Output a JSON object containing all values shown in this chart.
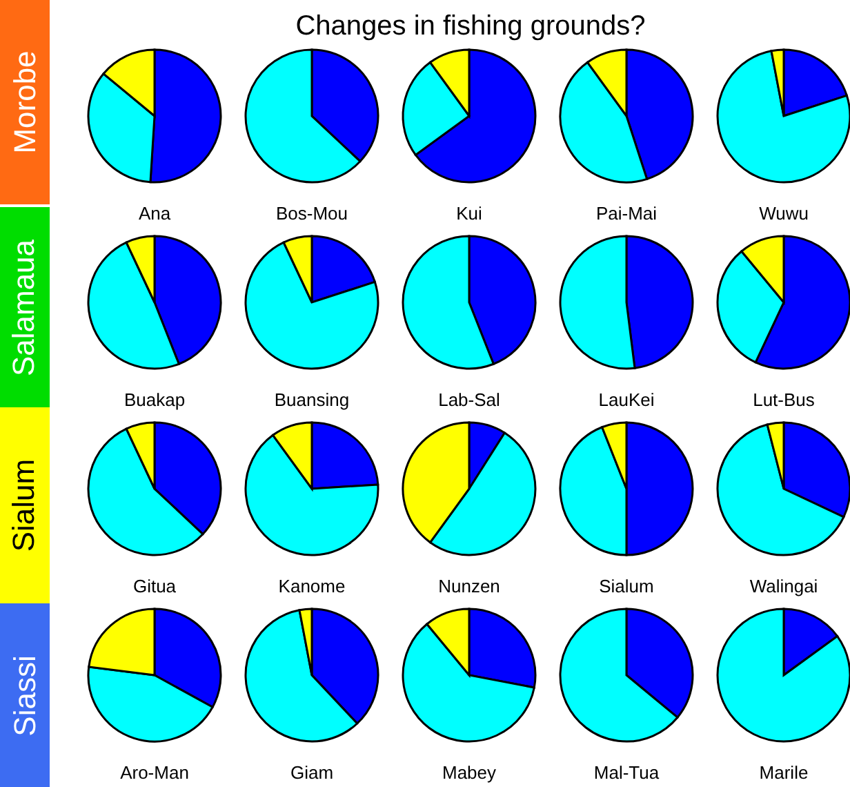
{
  "chart_data": [
    {
      "type": "other",
      "title": "Changes in fishing grounds?",
      "annotations": [
        "Morobe",
        "Salamaua",
        "Sialum",
        "Siassi"
      ],
      "colors": [
        "#ff6a13",
        "#00dd00",
        "#ffff00",
        "#3d6cf2"
      ]
    },
    {
      "type": "pie",
      "title": "Ana",
      "categories": [
        null,
        null,
        null
      ],
      "values": [
        51,
        35,
        14
      ],
      "colors": [
        "#0000ff",
        "#00ffff",
        "#ffff00"
      ]
    },
    {
      "type": "pie",
      "title": "Bos-Mou",
      "categories": [
        null,
        null
      ],
      "values": [
        37,
        63
      ],
      "colors": [
        "#0000ff",
        "#00ffff"
      ]
    },
    {
      "type": "pie",
      "title": "Kui",
      "categories": [
        null,
        null,
        null
      ],
      "values": [
        65,
        25,
        10
      ],
      "colors": [
        "#0000ff",
        "#00ffff",
        "#ffff00"
      ]
    },
    {
      "type": "pie",
      "title": "Pai-Mai",
      "categories": [
        null,
        null,
        null
      ],
      "values": [
        45,
        45,
        10
      ],
      "colors": [
        "#0000ff",
        "#00ffff",
        "#ffff00"
      ]
    },
    {
      "type": "pie",
      "title": "Wuwu",
      "categories": [
        null,
        null,
        null
      ],
      "values": [
        20,
        77,
        3
      ],
      "colors": [
        "#0000ff",
        "#00ffff",
        "#ffff00"
      ]
    },
    {
      "type": "pie",
      "title": "Buakap",
      "categories": [
        null,
        null,
        null
      ],
      "values": [
        44,
        49,
        7
      ],
      "colors": [
        "#0000ff",
        "#00ffff",
        "#ffff00"
      ]
    },
    {
      "type": "pie",
      "title": "Buansing",
      "categories": [
        null,
        null,
        null
      ],
      "values": [
        20,
        73,
        7
      ],
      "colors": [
        "#0000ff",
        "#00ffff",
        "#ffff00"
      ]
    },
    {
      "type": "pie",
      "title": "Lab-Sal",
      "categories": [
        null,
        null
      ],
      "values": [
        44,
        56
      ],
      "colors": [
        "#0000ff",
        "#00ffff"
      ]
    },
    {
      "type": "pie",
      "title": "LauKei",
      "categories": [
        null,
        null
      ],
      "values": [
        48,
        52
      ],
      "colors": [
        "#0000ff",
        "#00ffff"
      ]
    },
    {
      "type": "pie",
      "title": "Lut-Bus",
      "categories": [
        null,
        null,
        null
      ],
      "values": [
        57,
        32,
        11
      ],
      "colors": [
        "#0000ff",
        "#00ffff",
        "#ffff00"
      ]
    },
    {
      "type": "pie",
      "title": "Gitua",
      "categories": [
        null,
        null,
        null
      ],
      "values": [
        37,
        56,
        7
      ],
      "colors": [
        "#0000ff",
        "#00ffff",
        "#ffff00"
      ]
    },
    {
      "type": "pie",
      "title": "Kanome",
      "categories": [
        null,
        null,
        null
      ],
      "values": [
        24,
        66,
        10
      ],
      "colors": [
        "#0000ff",
        "#00ffff",
        "#ffff00"
      ]
    },
    {
      "type": "pie",
      "title": "Nunzen",
      "categories": [
        null,
        null,
        null
      ],
      "values": [
        9,
        51,
        40
      ],
      "colors": [
        "#0000ff",
        "#00ffff",
        "#ffff00"
      ]
    },
    {
      "type": "pie",
      "title": "Sialum",
      "categories": [
        null,
        null,
        null
      ],
      "values": [
        50,
        44,
        6
      ],
      "colors": [
        "#0000ff",
        "#00ffff",
        "#ffff00"
      ]
    },
    {
      "type": "pie",
      "title": "Walingai",
      "categories": [
        null,
        null,
        null
      ],
      "values": [
        32,
        64,
        4
      ],
      "colors": [
        "#0000ff",
        "#00ffff",
        "#ffff00"
      ]
    },
    {
      "type": "pie",
      "title": "Aro-Man",
      "categories": [
        null,
        null,
        null
      ],
      "values": [
        33,
        44,
        23
      ],
      "colors": [
        "#0000ff",
        "#00ffff",
        "#ffff00"
      ]
    },
    {
      "type": "pie",
      "title": "Giam",
      "categories": [
        null,
        null,
        null
      ],
      "values": [
        38,
        59,
        3
      ],
      "colors": [
        "#0000ff",
        "#00ffff",
        "#ffff00"
      ]
    },
    {
      "type": "pie",
      "title": "Mabey",
      "categories": [
        null,
        null,
        null
      ],
      "values": [
        28,
        61,
        11
      ],
      "colors": [
        "#0000ff",
        "#00ffff",
        "#ffff00"
      ]
    },
    {
      "type": "pie",
      "title": "Mal-Tua",
      "categories": [
        null,
        null
      ],
      "values": [
        36,
        64
      ],
      "colors": [
        "#0000ff",
        "#00ffff"
      ]
    },
    {
      "type": "pie",
      "title": "Marile",
      "categories": [
        null,
        null
      ],
      "values": [
        15,
        85
      ],
      "colors": [
        "#0000ff",
        "#00ffff"
      ]
    }
  ]
}
